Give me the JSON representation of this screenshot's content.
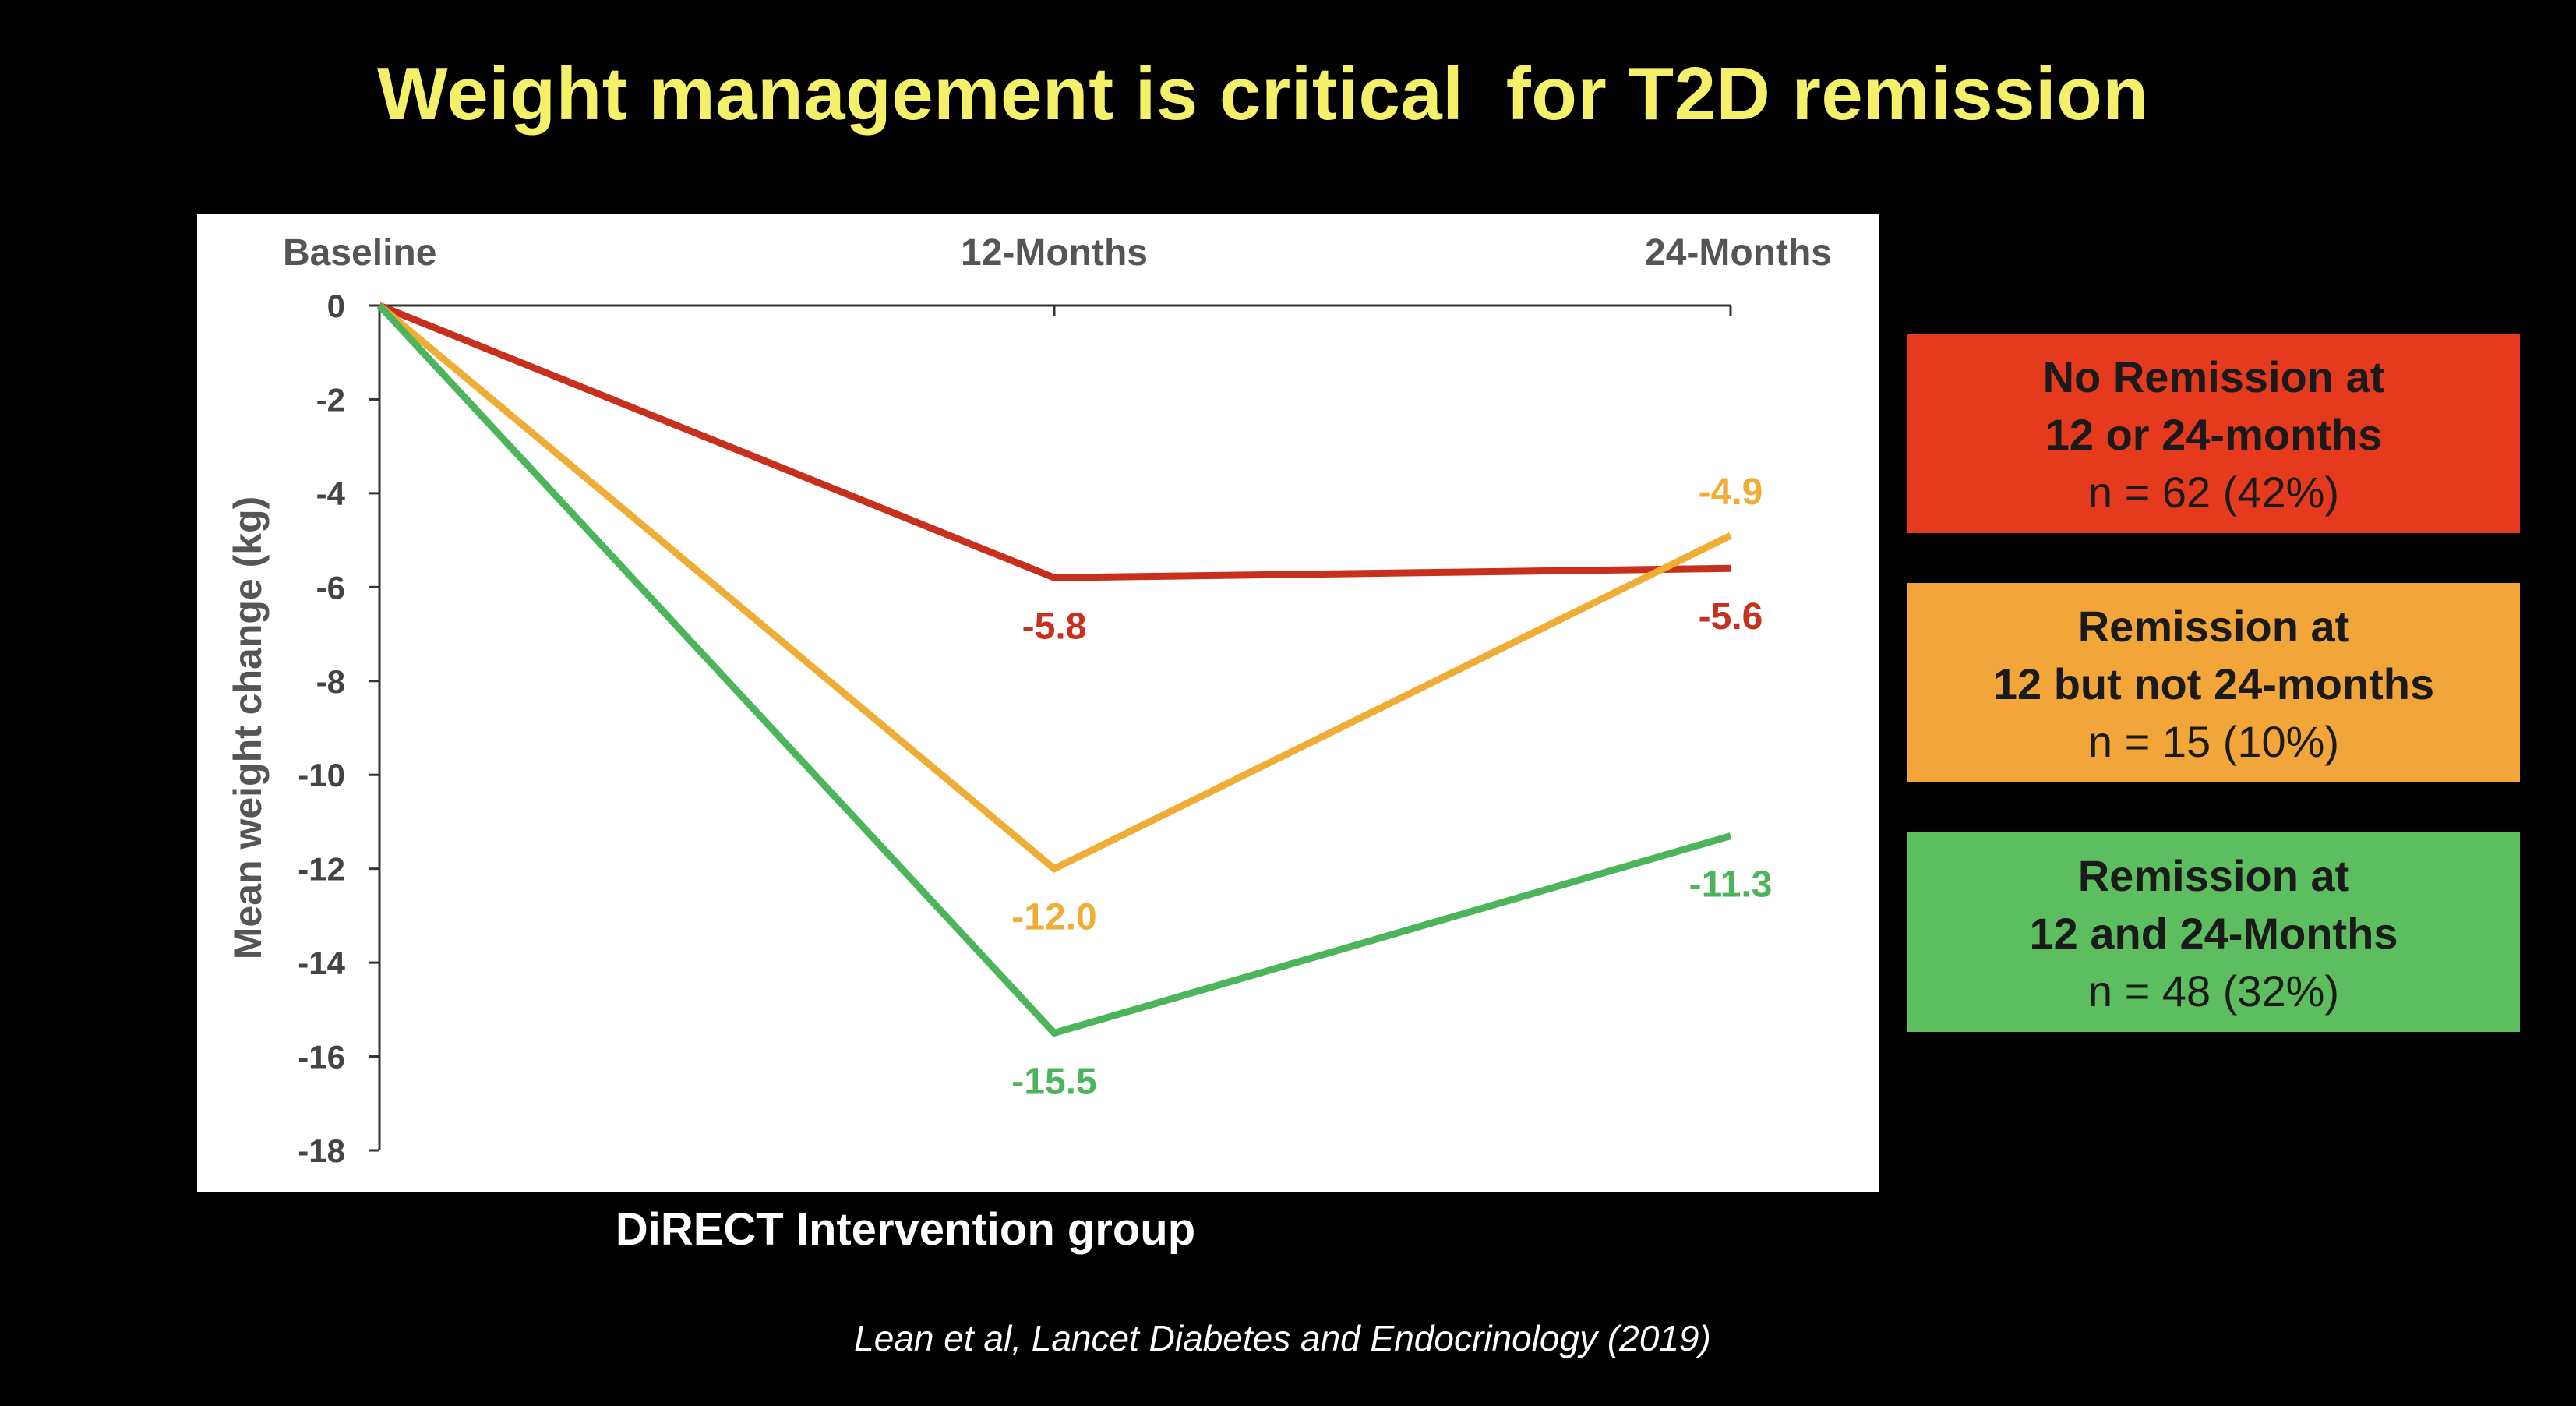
{
  "slide": {
    "title": "Weight management is critical  for T2D remission",
    "title_color": "#f5f06a",
    "x_caption": "DiRECT Intervention group",
    "citation": "Lean et al, Lancet Diabetes and Endocrinology (2019)"
  },
  "legend": [
    {
      "line1": "No Remission at",
      "line2": "12 or 24-months",
      "line3": "n = 62 (42%)",
      "color": "#e53a1e"
    },
    {
      "line1": "Remission at",
      "line2": "12 but not 24-months",
      "line3": "n = 15 (10%)",
      "color": "#f2a63a"
    },
    {
      "line1": "Remission at",
      "line2": "12 and 24-Months",
      "line3": "n = 48 (32%)",
      "color": "#5cbe5e"
    }
  ],
  "chart_data": {
    "type": "line",
    "categories": [
      "Baseline",
      "12-Months",
      "24-Months"
    ],
    "ylabel": "Mean weight change (kg)",
    "ylim": [
      -18,
      0
    ],
    "yticks": [
      0,
      -2,
      -4,
      -6,
      -8,
      -10,
      -12,
      -14,
      -16,
      -18
    ],
    "x_axis_position": "top",
    "grid": false,
    "series": [
      {
        "color": "#c8301e",
        "values": [
          0,
          -5.8,
          -5.6
        ],
        "labels": [
          "",
          "-5.8",
          "-5.6"
        ],
        "label_pos": [
          "",
          "below",
          "below"
        ]
      },
      {
        "color": "#f0ad36",
        "values": [
          0,
          -12.0,
          -4.9
        ],
        "labels": [
          "",
          "-12.0",
          "-4.9"
        ],
        "label_pos": [
          "",
          "below",
          "above"
        ]
      },
      {
        "color": "#4cb45a",
        "values": [
          0,
          -15.5,
          -11.3
        ],
        "labels": [
          "",
          "-15.5",
          "-11.3"
        ],
        "label_pos": [
          "",
          "below",
          "below"
        ]
      }
    ]
  }
}
